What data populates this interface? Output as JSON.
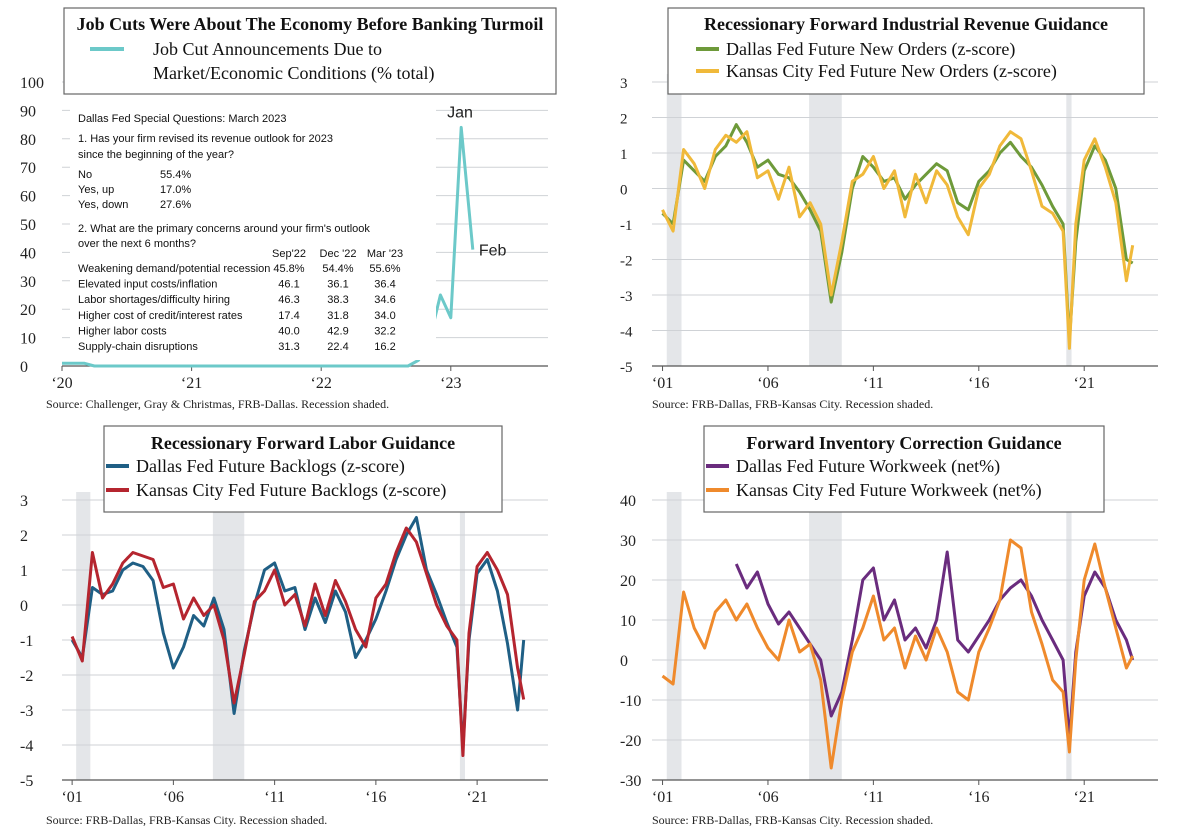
{
  "chart_data": [
    {
      "type": "line",
      "title": "Job Cuts Were About The Economy Before Banking Turmoil",
      "source": "Source: Challenger, Gray & Christmas, FRB-Dallas. Recession shaded.",
      "ylim": [
        0,
        100
      ],
      "yticks": [
        "0",
        "10",
        "20",
        "30",
        "40",
        "50",
        "60",
        "70",
        "80",
        "90",
        "100"
      ],
      "xlim": [
        2020.0,
        2023.75
      ],
      "xticks": [
        {
          "x": 2020.0,
          "label": "‘20"
        },
        {
          "x": 2021.0,
          "label": "‘21"
        },
        {
          "x": 2022.0,
          "label": "‘22"
        },
        {
          "x": 2023.0,
          "label": "‘23"
        }
      ],
      "grid": true,
      "legend_placement": "top",
      "series": [
        {
          "name": "Job Cut Announcements Due to Market/Economic Conditions (% total)",
          "color": "#6cc9c9",
          "x": [
            2020.0,
            2020.08,
            2020.17,
            2020.25,
            2020.5,
            2021.0,
            2021.5,
            2022.0,
            2022.5,
            2022.67,
            2022.75,
            2022.83,
            2022.92,
            2023.0,
            2023.08,
            2023.17
          ],
          "y": [
            1,
            1,
            1,
            0,
            0,
            0,
            0,
            0,
            0,
            0,
            2,
            8,
            25,
            17,
            84,
            41
          ]
        }
      ],
      "annotations": [
        {
          "text": "Jan",
          "x": 2023.08,
          "y": 84
        },
        {
          "text": "Feb",
          "x": 2023.17,
          "y": 41
        }
      ],
      "inset_table": {
        "heading": "Dallas Fed Special Questions: March 2023",
        "q1": [
          "1. Has your firm revised its revenue outlook for 2023",
          "since the beginning of the year?"
        ],
        "q1_rows": [
          {
            "label": "No",
            "value": "55.4%"
          },
          {
            "label": "Yes, up",
            "value": "17.0%"
          },
          {
            "label": "Yes, down",
            "value": "27.6%"
          }
        ],
        "q2": [
          "2. What are the primary concerns around your firm's outlook",
          "over the next 6 months?"
        ],
        "q2_columns": [
          "Sep'22",
          "Dec '22",
          "Mar '23"
        ],
        "q2_rows": [
          {
            "label": "Weakening demand/potential recession",
            "values": [
              "45.8%",
              "54.4%",
              "55.6%"
            ]
          },
          {
            "label": "Elevated input costs/inflation",
            "values": [
              "46.1",
              "36.1",
              "36.4"
            ]
          },
          {
            "label": "Labor shortages/difficulty hiring",
            "values": [
              "46.3",
              "38.3",
              "34.6"
            ]
          },
          {
            "label": "Higher cost of credit/interest rates",
            "values": [
              "17.4",
              "31.8",
              "34.0"
            ]
          },
          {
            "label": "Higher labor costs",
            "values": [
              "40.0",
              "42.9",
              "32.2"
            ]
          },
          {
            "label": "Supply-chain disruptions",
            "values": [
              "31.3",
              "22.4",
              "16.2"
            ]
          }
        ]
      }
    },
    {
      "type": "line",
      "title": "Recessionary Forward Industrial Revenue Guidance",
      "source": "Source: FRB-Dallas, FRB-Kansas City. Recession shaded.",
      "ylim": [
        -5,
        3
      ],
      "yticks": [
        "-5",
        "-4",
        "-3",
        "-2",
        "-1",
        "0",
        "1",
        "2",
        "3"
      ],
      "xlim": [
        2000.5,
        2024.5
      ],
      "xticks": [
        {
          "x": 2001,
          "label": "‘01"
        },
        {
          "x": 2006,
          "label": "‘06"
        },
        {
          "x": 2011,
          "label": "‘11"
        },
        {
          "x": 2016,
          "label": "‘16"
        },
        {
          "x": 2021,
          "label": "‘21"
        }
      ],
      "recessions": [
        [
          2001.2,
          2001.9
        ],
        [
          2007.95,
          2009.5
        ],
        [
          2020.15,
          2020.4
        ]
      ],
      "grid": true,
      "legend_placement": "top",
      "series": [
        {
          "name": "Dallas Fed Future New Orders (z-score)",
          "color": "#6e9a3a",
          "x": [
            2001.0,
            2001.5,
            2002.0,
            2002.5,
            2003.0,
            2003.5,
            2004.0,
            2004.5,
            2005.0,
            2005.5,
            2006.0,
            2006.5,
            2007.0,
            2007.5,
            2008.0,
            2008.5,
            2009.0,
            2009.5,
            2010.0,
            2010.5,
            2011.0,
            2011.5,
            2012.0,
            2012.5,
            2013.0,
            2013.5,
            2014.0,
            2014.5,
            2015.0,
            2015.5,
            2016.0,
            2016.5,
            2017.0,
            2017.5,
            2018.0,
            2018.5,
            2019.0,
            2019.5,
            2020.0,
            2020.3,
            2020.6,
            2021.0,
            2021.5,
            2022.0,
            2022.5,
            2023.0,
            2023.3
          ],
          "y": [
            -0.7,
            -1.0,
            0.8,
            0.5,
            0.2,
            0.9,
            1.2,
            1.8,
            1.3,
            0.6,
            0.8,
            0.4,
            0.3,
            -0.1,
            -0.6,
            -1.2,
            -3.2,
            -1.8,
            0.0,
            0.9,
            0.6,
            0.2,
            0.3,
            -0.3,
            0.1,
            0.4,
            0.7,
            0.5,
            -0.4,
            -0.6,
            0.2,
            0.5,
            1.0,
            1.3,
            0.9,
            0.6,
            0.1,
            -0.5,
            -1.0,
            -4.3,
            -1.5,
            0.5,
            1.2,
            0.8,
            0.0,
            -2.0,
            -2.1
          ]
        },
        {
          "name": "Kansas City Fed Future New Orders (z-score)",
          "color": "#f0b93a",
          "x": [
            2001.0,
            2001.5,
            2002.0,
            2002.5,
            2003.0,
            2003.5,
            2004.0,
            2004.5,
            2005.0,
            2005.5,
            2006.0,
            2006.5,
            2007.0,
            2007.5,
            2008.0,
            2008.5,
            2009.0,
            2009.5,
            2010.0,
            2010.5,
            2011.0,
            2011.5,
            2012.0,
            2012.5,
            2013.0,
            2013.5,
            2014.0,
            2014.5,
            2015.0,
            2015.5,
            2016.0,
            2016.5,
            2017.0,
            2017.5,
            2018.0,
            2018.5,
            2019.0,
            2019.5,
            2020.0,
            2020.3,
            2020.6,
            2021.0,
            2021.5,
            2022.0,
            2022.5,
            2023.0,
            2023.3
          ],
          "y": [
            -0.6,
            -1.2,
            1.1,
            0.7,
            0.0,
            1.1,
            1.5,
            1.3,
            1.6,
            0.3,
            0.5,
            -0.3,
            0.6,
            -0.8,
            -0.4,
            -1.0,
            -3.0,
            -1.5,
            0.2,
            0.4,
            0.9,
            0.0,
            0.5,
            -0.8,
            0.4,
            -0.4,
            0.5,
            0.1,
            -0.8,
            -1.3,
            0.0,
            0.4,
            1.2,
            1.6,
            1.4,
            0.5,
            -0.5,
            -0.7,
            -1.2,
            -4.5,
            -1.0,
            0.8,
            1.4,
            0.6,
            -0.4,
            -2.6,
            -1.6
          ]
        }
      ]
    },
    {
      "type": "line",
      "title": "Recessionary Forward Labor Guidance",
      "source": "Source: FRB-Dallas, FRB-Kansas City. Recession shaded.",
      "ylim": [
        -5,
        3
      ],
      "yticks": [
        "-5",
        "-4",
        "-3",
        "-2",
        "-1",
        "0",
        "1",
        "2",
        "3"
      ],
      "xlim": [
        2000.5,
        2024.5
      ],
      "xticks": [
        {
          "x": 2001,
          "label": "‘01"
        },
        {
          "x": 2006,
          "label": "‘06"
        },
        {
          "x": 2011,
          "label": "‘11"
        },
        {
          "x": 2016,
          "label": "‘16"
        },
        {
          "x": 2021,
          "label": "‘21"
        }
      ],
      "recessions": [
        [
          2001.2,
          2001.9
        ],
        [
          2007.95,
          2009.5
        ],
        [
          2020.15,
          2020.4
        ]
      ],
      "grid": true,
      "legend_placement": "top",
      "series": [
        {
          "name": "Dallas Fed Future Backlogs (z-score)",
          "color": "#1f5f85",
          "x": [
            2001.0,
            2001.5,
            2002.0,
            2002.5,
            2003.0,
            2003.5,
            2004.0,
            2004.5,
            2005.0,
            2005.5,
            2006.0,
            2006.5,
            2007.0,
            2007.5,
            2008.0,
            2008.5,
            2009.0,
            2009.5,
            2010.0,
            2010.5,
            2011.0,
            2011.5,
            2012.0,
            2012.5,
            2013.0,
            2013.5,
            2014.0,
            2014.5,
            2015.0,
            2015.5,
            2016.0,
            2016.5,
            2017.0,
            2017.5,
            2018.0,
            2018.5,
            2019.0,
            2019.5,
            2020.0,
            2020.3,
            2020.6,
            2021.0,
            2021.5,
            2022.0,
            2022.5,
            2023.0,
            2023.3
          ],
          "y": [
            -1.0,
            -1.5,
            0.5,
            0.3,
            0.4,
            1.0,
            1.2,
            1.1,
            0.7,
            -0.8,
            -1.8,
            -1.2,
            -0.3,
            -0.6,
            0.2,
            -0.7,
            -3.1,
            -1.3,
            0.0,
            1.0,
            1.2,
            0.4,
            0.5,
            -0.7,
            0.2,
            -0.5,
            0.4,
            -0.2,
            -1.5,
            -1.0,
            -0.4,
            0.4,
            1.3,
            2.0,
            2.5,
            1.0,
            0.3,
            -0.5,
            -1.2,
            -4.1,
            -1.0,
            0.9,
            1.3,
            0.4,
            -1.1,
            -3.0,
            -1.0
          ]
        },
        {
          "name": "Kansas City Fed Future Backlogs (z-score)",
          "color": "#b5252f",
          "x": [
            2001.0,
            2001.5,
            2002.0,
            2002.5,
            2003.0,
            2003.5,
            2004.0,
            2004.5,
            2005.0,
            2005.5,
            2006.0,
            2006.5,
            2007.0,
            2007.5,
            2008.0,
            2008.5,
            2009.0,
            2009.5,
            2010.0,
            2010.5,
            2011.0,
            2011.5,
            2012.0,
            2012.5,
            2013.0,
            2013.5,
            2014.0,
            2014.5,
            2015.0,
            2015.5,
            2016.0,
            2016.5,
            2017.0,
            2017.5,
            2018.0,
            2018.5,
            2019.0,
            2019.5,
            2020.0,
            2020.3,
            2020.6,
            2021.0,
            2021.5,
            2022.0,
            2022.5,
            2023.0,
            2023.3
          ],
          "y": [
            -0.9,
            -1.6,
            1.5,
            0.2,
            0.6,
            1.2,
            1.5,
            1.4,
            1.3,
            0.5,
            0.6,
            -0.4,
            0.2,
            -0.3,
            0.0,
            -1.0,
            -2.8,
            -1.4,
            0.1,
            0.4,
            1.0,
            0.0,
            0.3,
            -0.6,
            0.6,
            -0.3,
            0.7,
            0.1,
            -0.7,
            -1.2,
            0.2,
            0.6,
            1.5,
            2.2,
            1.8,
            0.9,
            0.0,
            -0.6,
            -1.0,
            -4.3,
            -0.8,
            1.1,
            1.5,
            1.0,
            0.3,
            -1.8,
            -2.7
          ]
        }
      ]
    },
    {
      "type": "line",
      "title": "Forward Inventory Correction Guidance",
      "source": "Source: FRB-Dallas, FRB-Kansas City. Recession shaded.",
      "ylim": [
        -30,
        40
      ],
      "yticks": [
        "-30",
        "-20",
        "-10",
        "0",
        "10",
        "20",
        "30",
        "40"
      ],
      "xlim": [
        2000.5,
        2024.5
      ],
      "xticks": [
        {
          "x": 2001,
          "label": "‘01"
        },
        {
          "x": 2006,
          "label": "‘06"
        },
        {
          "x": 2011,
          "label": "‘11"
        },
        {
          "x": 2016,
          "label": "‘16"
        },
        {
          "x": 2021,
          "label": "‘21"
        }
      ],
      "recessions": [
        [
          2001.2,
          2001.9
        ],
        [
          2007.95,
          2009.5
        ],
        [
          2020.15,
          2020.4
        ]
      ],
      "grid": true,
      "legend_placement": "top",
      "series": [
        {
          "name": "Dallas Fed Future Workweek (net%)",
          "color": "#6a2c7e",
          "x": [
            2004.5,
            2005.0,
            2005.5,
            2006.0,
            2006.5,
            2007.0,
            2007.5,
            2008.0,
            2008.5,
            2009.0,
            2009.5,
            2010.0,
            2010.5,
            2011.0,
            2011.5,
            2012.0,
            2012.5,
            2013.0,
            2013.5,
            2014.0,
            2014.5,
            2015.0,
            2015.5,
            2016.0,
            2016.5,
            2017.0,
            2017.5,
            2018.0,
            2018.5,
            2019.0,
            2019.5,
            2020.0,
            2020.3,
            2020.6,
            2021.0,
            2021.5,
            2022.0,
            2022.5,
            2023.0,
            2023.3
          ],
          "y": [
            24,
            18,
            22,
            14,
            9,
            12,
            8,
            4,
            0,
            -14,
            -8,
            5,
            20,
            23,
            10,
            15,
            5,
            8,
            3,
            10,
            27,
            5,
            2,
            6,
            10,
            15,
            18,
            20,
            16,
            10,
            5,
            0,
            -20,
            2,
            16,
            22,
            18,
            10,
            5,
            0
          ]
        },
        {
          "name": "Kansas City Fed Future Workweek (net%)",
          "color": "#ef8a2c",
          "x": [
            2001.0,
            2001.5,
            2002.0,
            2002.5,
            2003.0,
            2003.5,
            2004.0,
            2004.5,
            2005.0,
            2005.5,
            2006.0,
            2006.5,
            2007.0,
            2007.5,
            2008.0,
            2008.5,
            2009.0,
            2009.5,
            2010.0,
            2010.5,
            2011.0,
            2011.5,
            2012.0,
            2012.5,
            2013.0,
            2013.5,
            2014.0,
            2014.5,
            2015.0,
            2015.5,
            2016.0,
            2016.5,
            2017.0,
            2017.5,
            2018.0,
            2018.5,
            2019.0,
            2019.5,
            2020.0,
            2020.3,
            2020.6,
            2021.0,
            2021.5,
            2022.0,
            2022.5,
            2023.0,
            2023.3
          ],
          "y": [
            -4,
            -6,
            17,
            8,
            3,
            12,
            15,
            10,
            14,
            8,
            3,
            0,
            10,
            2,
            4,
            -5,
            -27,
            -10,
            2,
            8,
            16,
            5,
            8,
            -2,
            6,
            0,
            8,
            2,
            -8,
            -10,
            2,
            8,
            15,
            30,
            28,
            12,
            4,
            -5,
            -8,
            -23,
            0,
            20,
            29,
            18,
            8,
            -2,
            1
          ]
        }
      ]
    }
  ]
}
